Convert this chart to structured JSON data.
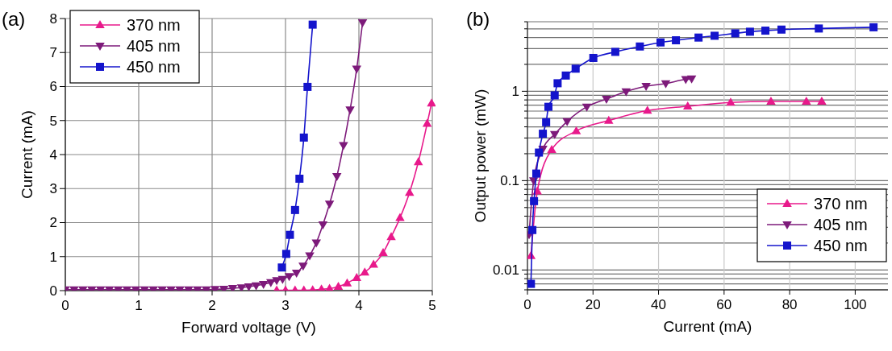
{
  "chart_data": [
    {
      "type": "line",
      "title": "(a)",
      "xlabel": "Forward voltage (V)",
      "ylabel": "Current (mA)",
      "xlim": [
        0,
        5
      ],
      "xticks": [
        0,
        1,
        2,
        3,
        4,
        5
      ],
      "ylim": [
        0,
        8
      ],
      "yticks": [
        0,
        1,
        2,
        3,
        4,
        5,
        6,
        7,
        8
      ],
      "grid": true,
      "legend": "top left",
      "series": [
        {
          "name": "370 nm",
          "color": "#e8198b",
          "marker": "triangle",
          "x": [
            2.88,
            3.0,
            3.13,
            3.25,
            3.37,
            3.49,
            3.6,
            3.72,
            3.84,
            3.97,
            4.08,
            4.2,
            4.33,
            4.44,
            4.56,
            4.69,
            4.81,
            4.93,
            4.99
          ],
          "values": [
            0.01,
            0.01,
            0.01,
            0.01,
            0.02,
            0.04,
            0.06,
            0.12,
            0.22,
            0.38,
            0.54,
            0.77,
            1.11,
            1.58,
            2.14,
            2.88,
            3.78,
            4.91,
            5.51
          ]
        },
        {
          "name": "405 nm",
          "color": "#7d1a7a",
          "marker": "triangle-down",
          "x": [
            0,
            0.12,
            0.24,
            0.36,
            0.48,
            0.6,
            0.72,
            0.84,
            0.96,
            1.08,
            1.2,
            1.32,
            1.44,
            1.56,
            1.68,
            1.8,
            1.92,
            2.04,
            2.16,
            2.28,
            2.4,
            2.5,
            2.6,
            2.7,
            2.8,
            2.88,
            2.96,
            3.05,
            3.15,
            3.24,
            3.33,
            3.42,
            3.51,
            3.6,
            3.7,
            3.79,
            3.88,
            3.97,
            4.05
          ],
          "values": [
            0.03,
            0.03,
            0.03,
            0.03,
            0.03,
            0.03,
            0.03,
            0.03,
            0.03,
            0.03,
            0.03,
            0.03,
            0.03,
            0.03,
            0.03,
            0.03,
            0.03,
            0.04,
            0.05,
            0.07,
            0.09,
            0.12,
            0.15,
            0.19,
            0.24,
            0.3,
            0.34,
            0.42,
            0.52,
            0.73,
            1.03,
            1.41,
            1.94,
            2.55,
            3.36,
            4.27,
            5.32,
            6.52,
            7.88
          ]
        },
        {
          "name": "450 nm",
          "color": "#1414cc",
          "marker": "square",
          "x": [
            2.95,
            3.01,
            3.06,
            3.13,
            3.19,
            3.25,
            3.3,
            3.37
          ],
          "values": [
            0.68,
            1.08,
            1.64,
            2.37,
            3.29,
            4.5,
            5.99,
            7.82
          ]
        }
      ]
    },
    {
      "type": "line",
      "title": "(b)",
      "xlabel": "Current (mA)",
      "ylabel": "Output power (mW)",
      "xlim": [
        0,
        110
      ],
      "xticks": [
        0,
        20,
        40,
        60,
        80,
        100
      ],
      "log": "y",
      "ylim": [
        0.006,
        6
      ],
      "yticks": [
        {
          "value": 0.006,
          "label": null
        },
        {
          "value": 0.007,
          "label": null
        },
        {
          "value": 0.008,
          "label": null
        },
        {
          "value": 0.009,
          "label": null
        },
        0.01,
        {
          "value": 0.02,
          "label": null
        },
        {
          "value": 0.03,
          "label": null
        },
        {
          "value": 0.04,
          "label": null
        },
        {
          "value": 0.05,
          "label": null
        },
        {
          "value": 0.06,
          "label": null
        },
        {
          "value": 0.07,
          "label": null
        },
        {
          "value": 0.08,
          "label": null
        },
        {
          "value": 0.09,
          "label": null
        },
        0.1,
        {
          "value": 0.2,
          "label": null
        },
        {
          "value": 0.3,
          "label": null
        },
        {
          "value": 0.4,
          "label": null
        },
        {
          "value": 0.5,
          "label": null
        },
        {
          "value": 0.6,
          "label": null
        },
        {
          "value": 0.7,
          "label": null
        },
        {
          "value": 0.8,
          "label": null
        },
        {
          "value": 0.9,
          "label": null
        },
        1,
        {
          "value": 2,
          "label": null
        },
        {
          "value": 3,
          "label": null
        },
        {
          "value": 4,
          "label": null
        },
        {
          "value": 5,
          "label": null
        },
        {
          "value": 6,
          "label": null
        }
      ],
      "grid": true,
      "legend": "bottom right",
      "series": [
        {
          "name": "370 nm",
          "color": "#e8198b",
          "marker": "triangle",
          "x": [
            1.06,
            3.0,
            7.4,
            14.9,
            24.8,
            36.6,
            48.9,
            62,
            74.3,
            85.1,
            89.8
          ],
          "values": [
            0.0144,
            0.076,
            0.222,
            0.36,
            0.47,
            0.61,
            0.68,
            0.75,
            0.77,
            0.77,
            0.77
          ]
        },
        {
          "name": "405 nm",
          "color": "#7d1a7a",
          "marker": "triangle-down",
          "x": [
            0.5,
            1.9,
            4.7,
            8.3,
            12.1,
            18.1,
            24.1,
            30.1,
            36.2,
            42.2,
            48.3,
            50.1
          ],
          "values": [
            0.025,
            0.1,
            0.226,
            0.33,
            0.46,
            0.67,
            0.82,
            0.99,
            1.14,
            1.22,
            1.36,
            1.38
          ]
        },
        {
          "name": "450 nm",
          "color": "#1414cc",
          "marker": "square",
          "x": [
            1.06,
            1.5,
            2.0,
            2.7,
            3.5,
            4.7,
            5.7,
            6.4,
            8.3,
            9.2,
            11.7,
            14.7,
            20.1,
            26.8,
            34.3,
            40.6,
            45.3,
            52.2,
            57.1,
            63.4,
            67.9,
            72.6,
            77.5,
            88.9,
            105.6
          ],
          "values": [
            0.007,
            0.028,
            0.059,
            0.12,
            0.206,
            0.335,
            0.45,
            0.67,
            0.9,
            1.23,
            1.5,
            1.79,
            2.36,
            2.76,
            3.17,
            3.52,
            3.72,
            3.99,
            4.18,
            4.45,
            4.64,
            4.77,
            4.9,
            5.04,
            5.2
          ]
        }
      ]
    }
  ]
}
